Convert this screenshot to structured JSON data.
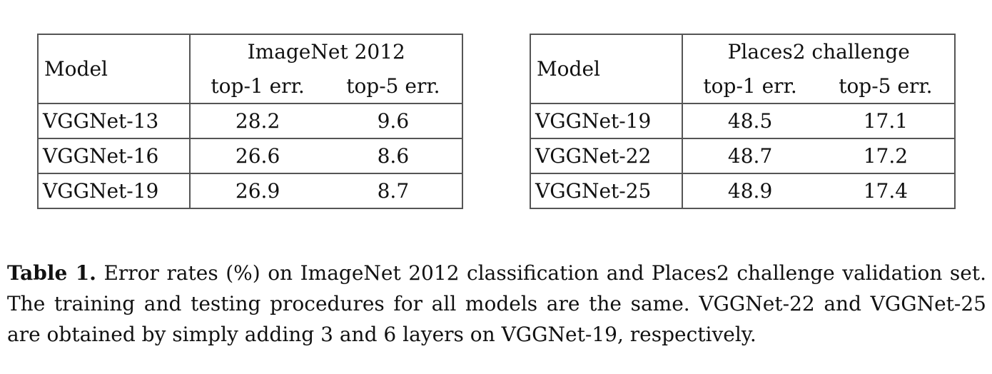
{
  "tables": [
    {
      "model_header": "Model",
      "group_header": "ImageNet 2012",
      "columns": [
        "top-1 err.",
        "top-5 err."
      ],
      "rows": [
        {
          "model": "VGGNet-13",
          "top1": "28.2",
          "top5": "9.6"
        },
        {
          "model": "VGGNet-16",
          "top1": "26.6",
          "top5": "8.6"
        },
        {
          "model": "VGGNet-19",
          "top1": "26.9",
          "top5": "8.7"
        }
      ]
    },
    {
      "model_header": "Model",
      "group_header": "Places2 challenge",
      "columns": [
        "top-1 err.",
        "top-5 err."
      ],
      "rows": [
        {
          "model": "VGGNet-19",
          "top1": "48.5",
          "top5": "17.1"
        },
        {
          "model": "VGGNet-22",
          "top1": "48.7",
          "top5": "17.2"
        },
        {
          "model": "VGGNet-25",
          "top1": "48.9",
          "top5": "17.4"
        }
      ]
    }
  ],
  "caption": {
    "label": "Table 1.",
    "text": "Error rates (%) on ImageNet 2012 classification and Places2 challenge validation set. The training and testing procedures for all models are the same. VGGNet-22 and VGGNet-25 are obtained by simply adding 3 and 6 layers on VGGNet-19, respectively."
  }
}
